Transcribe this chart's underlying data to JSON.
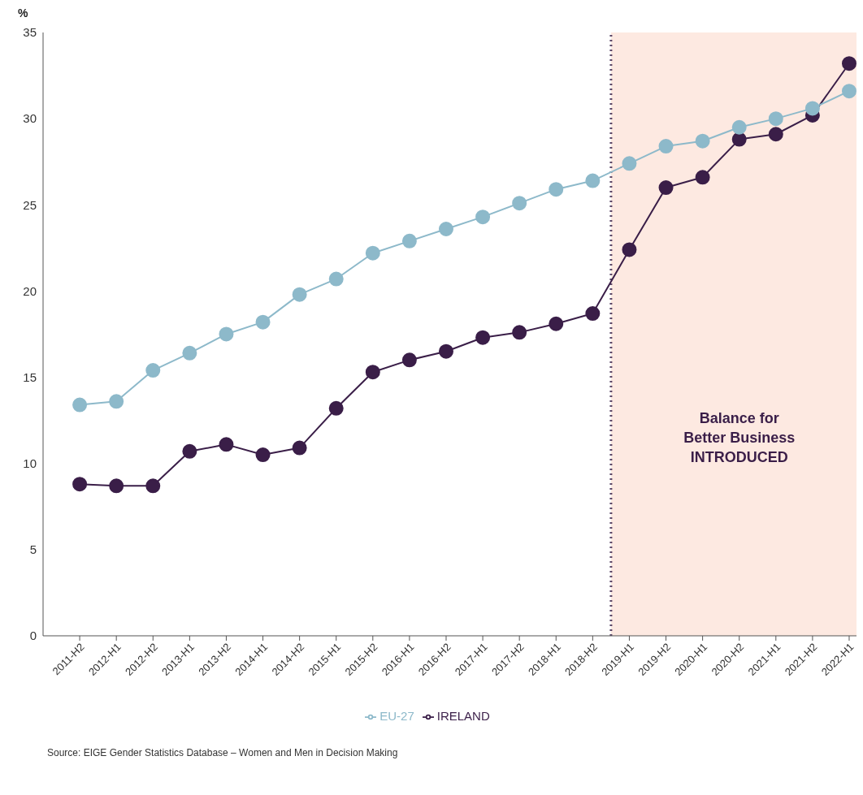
{
  "chart_data": {
    "type": "line",
    "ylabel": "%",
    "categories": [
      "2011-H2",
      "2012-H1",
      "2012-H2",
      "2013-H1",
      "2013-H2",
      "2014-H1",
      "2014-H2",
      "2015-H1",
      "2015-H2",
      "2016-H1",
      "2016-H2",
      "2017-H1",
      "2017-H2",
      "2018-H1",
      "2018-H2",
      "2019-H1",
      "2019-H2",
      "2020-H1",
      "2020-H2",
      "2021-H1",
      "2021-H2",
      "2022-H1"
    ],
    "series": [
      {
        "name": "IRELAND",
        "color": "#3a1e48",
        "values": [
          8.8,
          8.7,
          8.7,
          10.7,
          11.1,
          10.5,
          10.9,
          13.2,
          15.3,
          16.0,
          16.5,
          17.3,
          17.6,
          18.1,
          18.7,
          22.4,
          26.0,
          26.6,
          28.8,
          29.1,
          30.2,
          33.2
        ]
      },
      {
        "name": "EU-27",
        "color": "#8db9ca",
        "values": [
          13.4,
          13.6,
          15.4,
          16.4,
          17.5,
          18.2,
          19.8,
          20.7,
          22.2,
          22.9,
          23.6,
          24.3,
          25.1,
          25.9,
          26.4,
          27.4,
          28.4,
          28.7,
          29.5,
          30.0,
          30.6,
          31.6
        ]
      }
    ],
    "ylim": [
      0,
      35
    ],
    "yticks": [
      0,
      5,
      10,
      15,
      20,
      25,
      30,
      35
    ],
    "grid": false,
    "legend": "bottom",
    "marker": "circle",
    "line_style": "solid",
    "bands": [
      {
        "axis": "x",
        "from": "2019-H1",
        "to": "2022-H1",
        "label": "Balance for Better Business INTRODUCED",
        "color": "#fde9e1"
      }
    ],
    "ref_lines": [
      {
        "axis": "x",
        "value": "2019-H1",
        "color": "#5c4868",
        "line_style": "dotted"
      }
    ],
    "annotations": [
      "Source: EIGE Gender Statistics Database – Women and Men in Decision Making"
    ]
  }
}
